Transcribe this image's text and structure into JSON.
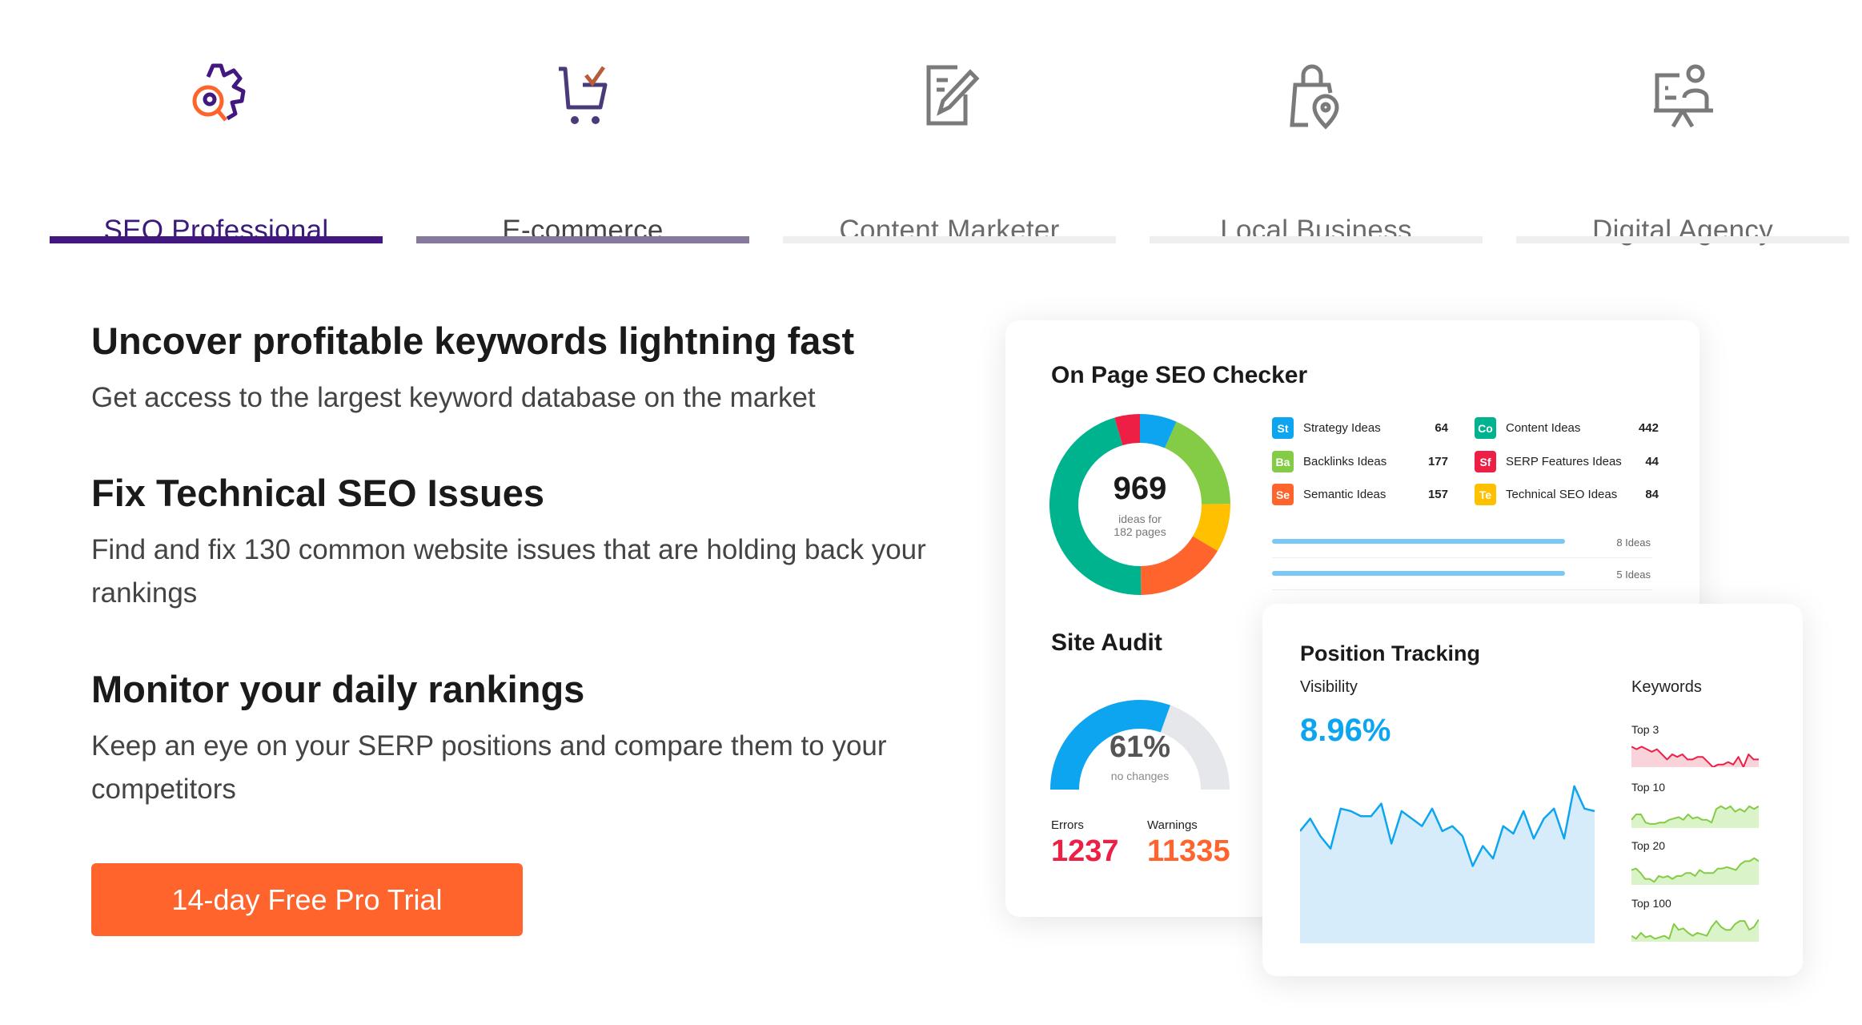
{
  "tabs": [
    {
      "label": "SEO Professional",
      "icon": "gear-search-icon",
      "state": "active"
    },
    {
      "label": "E-commerce",
      "icon": "cart-check-icon",
      "state": "hover"
    },
    {
      "label": "Content Marketer",
      "icon": "edit-document-icon",
      "state": "inactive"
    },
    {
      "label": "Local Business",
      "icon": "bag-location-icon",
      "state": "inactive"
    },
    {
      "label": "Digital Agency",
      "icon": "presentation-person-icon",
      "state": "inactive"
    }
  ],
  "features": [
    {
      "title": "Uncover profitable keywords lightning fast",
      "text": "Get access to the largest keyword database on the market"
    },
    {
      "title": "Fix Technical SEO Issues",
      "text": "Find and fix 130 common website issues that are holding back your rankings"
    },
    {
      "title": "Monitor your daily rankings",
      "text": "Keep an eye on your SERP positions and compare them to your competitors"
    }
  ],
  "cta": {
    "label": "14-day Free Pro Trial",
    "color": "#ff642d"
  },
  "onpage": {
    "title": "On Page SEO Checker",
    "total": "969",
    "sub1": "ideas for",
    "sub2": "182 pages",
    "legend": [
      {
        "abbr": "St",
        "label": "Strategy Ideas",
        "value": 64,
        "color": "#0ea5f0"
      },
      {
        "abbr": "Ba",
        "label": "Backlinks Ideas",
        "value": 177,
        "color": "#84cc45"
      },
      {
        "abbr": "Se",
        "label": "Semantic Ideas",
        "value": 157,
        "color": "#ff642d"
      },
      {
        "abbr": "Co",
        "label": "Content Ideas",
        "value": 442,
        "color": "#00b38f"
      },
      {
        "abbr": "Sf",
        "label": "SERP Features Ideas",
        "value": 44,
        "color": "#ee1f44"
      },
      {
        "abbr": "Te",
        "label": "Technical SEO Ideas",
        "value": 84,
        "color": "#ffc000"
      }
    ],
    "donut_order": [
      "St",
      "Ba",
      "Te",
      "Se",
      "Co",
      "Sf"
    ],
    "bars": [
      {
        "label": "8 Ideas"
      },
      {
        "label": "5 Ideas"
      }
    ]
  },
  "audit": {
    "title": "Site Audit",
    "percent": 61,
    "percent_label": "61%",
    "status": "no changes",
    "errors_label": "Errors",
    "errors": "1237",
    "warnings_label": "Warnings",
    "warnings": "11335",
    "colors": {
      "gauge": "#0ea5f0",
      "track": "#e6e7ea",
      "errors": "#ee1f44",
      "warnings": "#ff642d"
    }
  },
  "tracking": {
    "title": "Position Tracking",
    "visibility_label": "Visibility",
    "visibility": "8.96%",
    "keywords_label": "Keywords",
    "visibility_trend": [
      45,
      50,
      43,
      38,
      54,
      53,
      51,
      51,
      56,
      40,
      53,
      50,
      47,
      54,
      45,
      47,
      43,
      31,
      39,
      34,
      47,
      44,
      53,
      42,
      50,
      54,
      42,
      63,
      54,
      53
    ],
    "sparklines": [
      {
        "label": "Top 3",
        "color": "#ee1f44",
        "fill": "#f8d3da",
        "values": [
          8,
          7,
          8,
          7,
          6,
          7,
          5,
          3,
          5,
          4,
          5,
          3,
          3,
          4,
          4,
          2,
          0,
          1,
          1,
          2,
          1,
          4,
          0,
          5,
          3,
          3
        ]
      },
      {
        "label": "Top 10",
        "color": "#84cc45",
        "fill": "#dbf3c9",
        "values": [
          3,
          5,
          5,
          2,
          1.5,
          1.5,
          2,
          2,
          3,
          3.5,
          4,
          3,
          5,
          3.5,
          4,
          3,
          3,
          2,
          7,
          8,
          7,
          8,
          6,
          7,
          6,
          8,
          7,
          8
        ]
      },
      {
        "label": "Top 20",
        "color": "#84cc45",
        "fill": "#dbf3c9",
        "values": [
          5,
          5.5,
          4,
          2,
          2,
          1,
          3,
          2.5,
          3,
          2,
          3,
          3,
          4,
          4,
          3,
          5,
          4,
          4,
          4,
          5.5,
          5.5,
          6,
          5.5,
          5,
          7,
          8,
          8,
          9,
          8
        ]
      },
      {
        "label": "Top 100",
        "color": "#84cc45",
        "fill": "#dbf3c9",
        "values": [
          2,
          1,
          3,
          1.5,
          2,
          1,
          1.5,
          2,
          1,
          6,
          4,
          4.5,
          3,
          2,
          3,
          2.5,
          2,
          5,
          7,
          5,
          4,
          4,
          6,
          7,
          7,
          4,
          5,
          7.5
        ]
      }
    ]
  }
}
